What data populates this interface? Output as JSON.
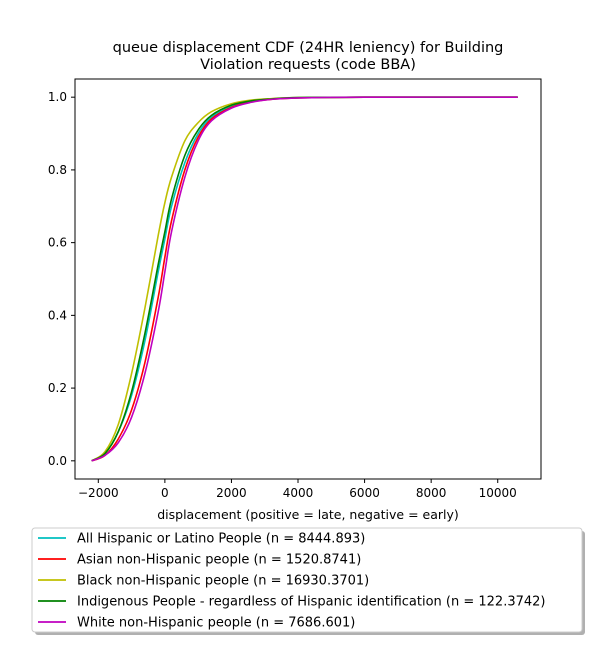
{
  "chart_data": {
    "type": "line",
    "title_line1": "queue displacement CDF (24HR leniency) for Building",
    "title_line2": "Violation  requests (code BBA)",
    "xlabel": "displacement (positive = late, negative = early)",
    "ylabel": "",
    "xlim": [
      -2700,
      11300
    ],
    "ylim": [
      -0.05,
      1.05
    ],
    "xticks": [
      -2000,
      0,
      2000,
      4000,
      6000,
      8000,
      10000
    ],
    "xtick_labels": [
      "−2000",
      "0",
      "2000",
      "4000",
      "6000",
      "8000",
      "10000"
    ],
    "yticks": [
      0.0,
      0.2,
      0.4,
      0.6,
      0.8,
      1.0
    ],
    "ytick_labels": [
      "0.0",
      "0.2",
      "0.4",
      "0.6",
      "0.8",
      "1.0"
    ],
    "grid": false,
    "legend_position": "below-plot",
    "series": [
      {
        "name": "All Hispanic or Latino People (n = 8444.893)",
        "color": "#00bfbf",
        "x": [
          -2200,
          -1800,
          -1400,
          -1000,
          -600,
          -200,
          0,
          200,
          600,
          1000,
          1400,
          2000,
          2600,
          3200,
          4000,
          6000,
          10600
        ],
        "y": [
          0.0,
          0.02,
          0.08,
          0.18,
          0.33,
          0.52,
          0.61,
          0.7,
          0.82,
          0.9,
          0.945,
          0.975,
          0.988,
          0.995,
          0.998,
          1.0,
          1.0
        ]
      },
      {
        "name": "Asian non-Hispanic people (n = 1520.8741)",
        "color": "#ff0000",
        "x": [
          -2200,
          -1800,
          -1400,
          -1000,
          -600,
          -200,
          0,
          200,
          600,
          1000,
          1400,
          2000,
          2600,
          3200,
          4000,
          6000,
          10600
        ],
        "y": [
          0.0,
          0.015,
          0.06,
          0.14,
          0.27,
          0.45,
          0.56,
          0.66,
          0.8,
          0.89,
          0.94,
          0.972,
          0.987,
          0.994,
          0.998,
          1.0,
          1.0
        ]
      },
      {
        "name": "Black non-Hispanic people (n = 16930.3701)",
        "color": "#bfbf00",
        "x": [
          -2200,
          -1800,
          -1400,
          -1000,
          -600,
          -200,
          0,
          200,
          600,
          1000,
          1400,
          2000,
          2600,
          3200,
          4000,
          6000,
          10600
        ],
        "y": [
          0.0,
          0.025,
          0.1,
          0.24,
          0.42,
          0.62,
          0.71,
          0.78,
          0.88,
          0.93,
          0.96,
          0.982,
          0.992,
          0.996,
          0.999,
          1.0,
          1.0
        ]
      },
      {
        "name": "Indigenous People - regardless of Hispanic identification (n = 122.3742)",
        "color": "#008000",
        "x": [
          -2200,
          -1800,
          -1400,
          -1000,
          -600,
          -200,
          0,
          200,
          600,
          1000,
          1400,
          2000,
          2600,
          3200,
          4000,
          6000,
          10600
        ],
        "y": [
          0.0,
          0.02,
          0.08,
          0.19,
          0.35,
          0.54,
          0.63,
          0.72,
          0.84,
          0.91,
          0.95,
          0.978,
          0.99,
          0.995,
          0.999,
          1.0,
          1.0
        ]
      },
      {
        "name": "White non-Hispanic people (n = 7686.601)",
        "color": "#bf00bf",
        "x": [
          -2200,
          -1800,
          -1400,
          -1000,
          -600,
          -200,
          0,
          200,
          600,
          1000,
          1400,
          2000,
          2600,
          3200,
          4000,
          6000,
          10600
        ],
        "y": [
          0.0,
          0.015,
          0.05,
          0.12,
          0.24,
          0.41,
          0.52,
          0.63,
          0.78,
          0.88,
          0.935,
          0.97,
          0.986,
          0.994,
          0.998,
          1.0,
          1.0
        ]
      }
    ]
  }
}
